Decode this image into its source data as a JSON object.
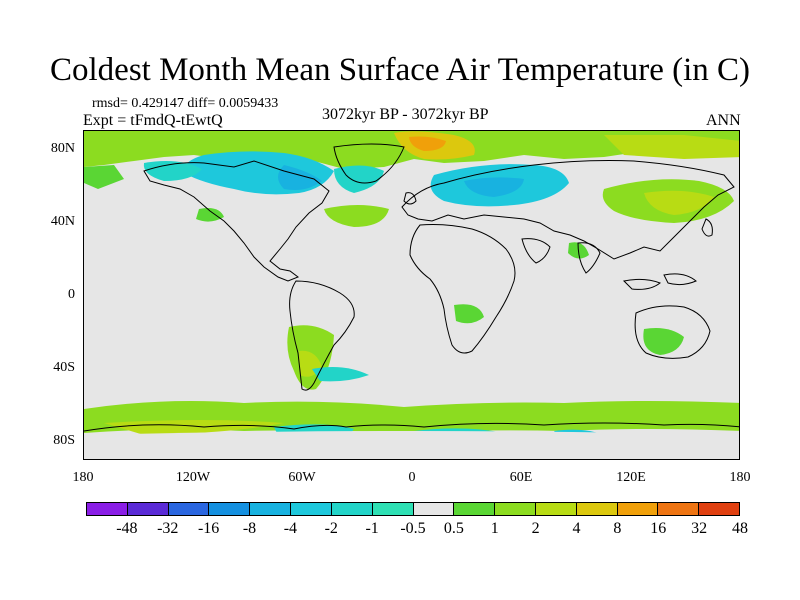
{
  "title": "Coldest Month Mean Surface Air Temperature (in C)",
  "stats": "rmsd= 0.429147 diff= 0.0059433",
  "expt": "Expt = tFmdQ-tEwtQ",
  "period": "3072kyr BP - 3072kyr BP",
  "season": "ANN",
  "map_data": {
    "projection": "cylindrical equidistant",
    "lon_range": [
      -180,
      180
    ],
    "lat_range": [
      -90,
      90
    ],
    "background_color": "#e6e6e6",
    "lat_ticks": [
      "80N",
      "40N",
      "0",
      "40S",
      "80S"
    ],
    "lon_ticks": [
      "180",
      "120W",
      "60W",
      "0",
      "60E",
      "120E",
      "180"
    ]
  },
  "legend": {
    "labels": [
      "-48",
      "-32",
      "-16",
      "-8",
      "-4",
      "-2",
      "-1",
      "-0.5",
      "0.5",
      "1",
      "2",
      "4",
      "8",
      "16",
      "32",
      "48"
    ],
    "colors": [
      "#8a1ee6",
      "#5a2ad6",
      "#2a66e0",
      "#1490e0",
      "#18b2e0",
      "#1ec8dc",
      "#22d4c8",
      "#2ee0b4",
      "#e6e6e6",
      "#5ad634",
      "#8cdc20",
      "#b8dc14",
      "#dcc80e",
      "#f0a00a",
      "#ee7412",
      "#e04010"
    ]
  }
}
